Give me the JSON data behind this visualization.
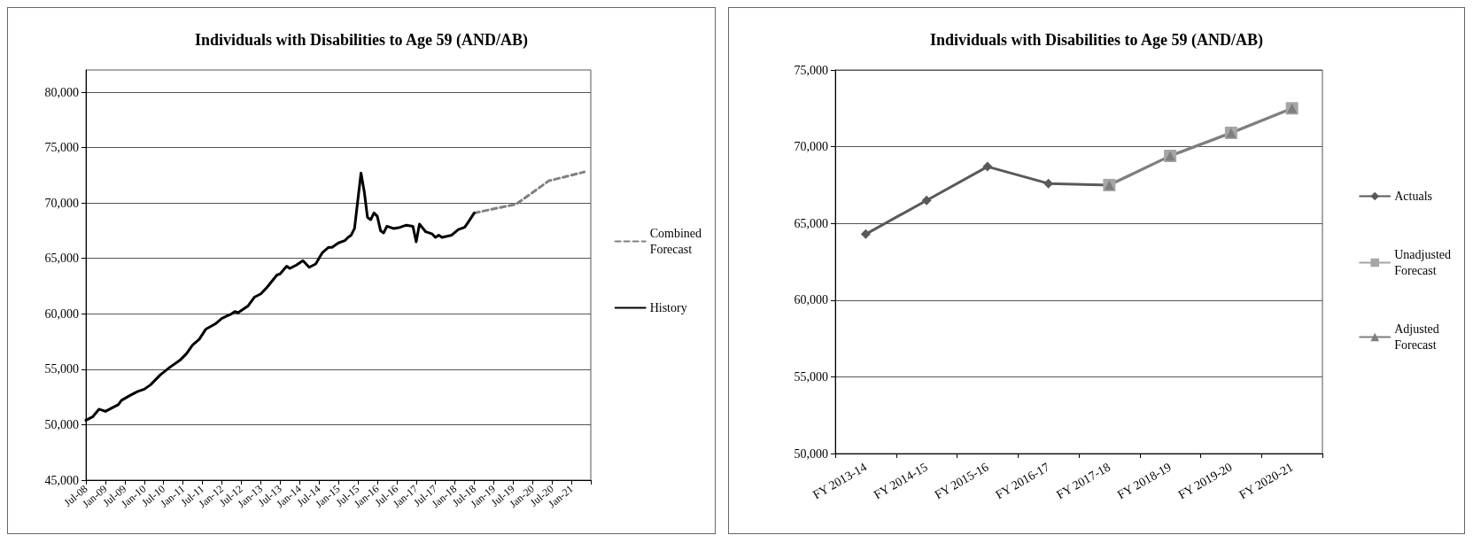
{
  "chart_data": [
    {
      "type": "line",
      "title": "Individuals with Disabilities to Age 59 (AND/AB)",
      "xlim": [
        "2008-07",
        "2021-07"
      ],
      "xticks": [
        {
          "value": "2008-07",
          "label": "Jul-08"
        },
        {
          "value": "2009-01",
          "label": "Jan-09"
        },
        {
          "value": "2009-07",
          "label": "Jul-09"
        },
        {
          "value": "2010-01",
          "label": "Jan-10"
        },
        {
          "value": "2010-07",
          "label": "Jul-10"
        },
        {
          "value": "2011-01",
          "label": "Jan-11"
        },
        {
          "value": "2011-07",
          "label": "Jul-11"
        },
        {
          "value": "2012-01",
          "label": "Jan-12"
        },
        {
          "value": "2012-07",
          "label": "Jul-12"
        },
        {
          "value": "2013-01",
          "label": "Jan-13"
        },
        {
          "value": "2013-07",
          "label": "Jul-13"
        },
        {
          "value": "2014-01",
          "label": "Jan-14"
        },
        {
          "value": "2014-07",
          "label": "Jul-14"
        },
        {
          "value": "2015-01",
          "label": "Jan-15"
        },
        {
          "value": "2015-07",
          "label": "Jul-15"
        },
        {
          "value": "2016-01",
          "label": "Jan-16"
        },
        {
          "value": "2016-07",
          "label": "Jul-16"
        },
        {
          "value": "2017-01",
          "label": "Jan-17"
        },
        {
          "value": "2017-07",
          "label": "Jul-17"
        },
        {
          "value": "2018-01",
          "label": "Jan-18"
        },
        {
          "value": "2018-07",
          "label": "Jul-18"
        },
        {
          "value": "2019-01",
          "label": "Jan-19"
        },
        {
          "value": "2019-07",
          "label": "Jul-19"
        },
        {
          "value": "2020-01",
          "label": "Jan-20"
        },
        {
          "value": "2020-07",
          "label": "Jul-20"
        },
        {
          "value": "2021-01",
          "label": "Jan-21"
        },
        {
          "value": "2021-07",
          "label": null
        }
      ],
      "ylim": [
        45000,
        82000
      ],
      "yticks": [
        {
          "value": 45000,
          "label": "45,000"
        },
        {
          "value": 50000,
          "label": "50,000"
        },
        {
          "value": 55000,
          "label": "55,000"
        },
        {
          "value": 60000,
          "label": "60,000"
        },
        {
          "value": 65000,
          "label": "65,000"
        },
        {
          "value": 70000,
          "label": "70,000"
        },
        {
          "value": 75000,
          "label": "75,000"
        },
        {
          "value": 80000,
          "label": "80,000"
        }
      ],
      "grid": "y",
      "legend": "right",
      "marker": "none",
      "series": [
        {
          "name": "Combined Forecast",
          "color": "#808080",
          "line_style": "dashed",
          "x": [
            "2018-07",
            "2019-08",
            "2020-06",
            "2021-05"
          ],
          "values": [
            69100,
            69900,
            72000,
            72800
          ]
        },
        {
          "name": "History",
          "color": "#000000",
          "line_style": "solid",
          "x": [
            "2008-07",
            "2008-09",
            "2008-11",
            "2009-01",
            "2009-03",
            "2009-05",
            "2009-06",
            "2009-09",
            "2009-11",
            "2010-01",
            "2010-03",
            "2010-06",
            "2010-09",
            "2010-12",
            "2011-02",
            "2011-04",
            "2011-06",
            "2011-08",
            "2011-11",
            "2012-01",
            "2012-04",
            "2012-05",
            "2012-06",
            "2012-09",
            "2012-11",
            "2013-01",
            "2013-03",
            "2013-06",
            "2013-07",
            "2013-09",
            "2013-10",
            "2013-12",
            "2014-02",
            "2014-04",
            "2014-06",
            "2014-08",
            "2014-10",
            "2014-11",
            "2015-01",
            "2015-03",
            "2015-04",
            "2015-05",
            "2015-06",
            "2015-08",
            "2015-09",
            "2015-10",
            "2015-11",
            "2015-12",
            "2016-01",
            "2016-02",
            "2016-03",
            "2016-04",
            "2016-06",
            "2016-08",
            "2016-10",
            "2016-12",
            "2017-01",
            "2017-02",
            "2017-04",
            "2017-06",
            "2017-07",
            "2017-08",
            "2017-09",
            "2017-12",
            "2018-02",
            "2018-04",
            "2018-05",
            "2018-07"
          ],
          "values": [
            50400,
            50700,
            51400,
            51200,
            51500,
            51800,
            52200,
            52700,
            53000,
            53200,
            53600,
            54500,
            55200,
            55800,
            56400,
            57200,
            57700,
            58600,
            59100,
            59600,
            60000,
            60200,
            60100,
            60700,
            61500,
            61800,
            62400,
            63500,
            63600,
            64300,
            64100,
            64400,
            64800,
            64200,
            64500,
            65500,
            66000,
            66000,
            66400,
            66600,
            66900,
            67100,
            67700,
            72700,
            71000,
            68700,
            68500,
            69100,
            68800,
            67500,
            67300,
            67900,
            67700,
            67800,
            68000,
            67900,
            66500,
            68100,
            67400,
            67200,
            66900,
            67100,
            66900,
            67100,
            67600,
            67800,
            68200,
            69100
          ]
        }
      ]
    },
    {
      "type": "line",
      "title": "Individuals with Disabilities to Age 59 (AND/AB)",
      "categories": [
        "FY 2013-14",
        "FY 2014-15",
        "FY 2015-16",
        "FY 2016-17",
        "FY 2017-18",
        "FY 2018-19",
        "FY 2019-20",
        "FY 2020-21"
      ],
      "ylim": [
        50000,
        75000
      ],
      "yticks": [
        {
          "value": 50000,
          "label": "50,000"
        },
        {
          "value": 55000,
          "label": "55,000"
        },
        {
          "value": 60000,
          "label": "60,000"
        },
        {
          "value": 65000,
          "label": "65,000"
        },
        {
          "value": 70000,
          "label": "70,000"
        },
        {
          "value": 75000,
          "label": "75,000"
        }
      ],
      "grid": "y",
      "legend": "right",
      "series": [
        {
          "name": "Actuals",
          "color": "#595959",
          "marker": "diamond",
          "values": [
            64300,
            66500,
            68700,
            67600,
            67500,
            null,
            null,
            null
          ]
        },
        {
          "name": "Unadjusted Forecast",
          "color": "#a6a6a6",
          "marker": "square",
          "values": [
            null,
            null,
            null,
            null,
            67500,
            69400,
            70900,
            72500
          ]
        },
        {
          "name": "Adjusted Forecast",
          "color": "#7f7f7f",
          "marker": "triangle",
          "values": [
            null,
            null,
            null,
            null,
            67500,
            69400,
            70900,
            72500
          ]
        }
      ]
    }
  ]
}
